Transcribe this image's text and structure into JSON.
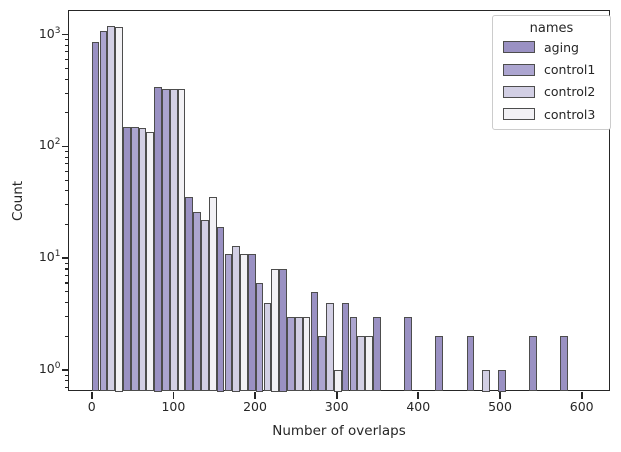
{
  "figure": {
    "background": "#ffffff",
    "text_color": "#262626",
    "spine_color": "#262626"
  },
  "chart_data": {
    "type": "bar",
    "subtype": "grouped-histogram-log-y",
    "title": "",
    "xlabel": "Number of overlaps",
    "ylabel": "Count",
    "x_tick_values": [
      0,
      100,
      200,
      300,
      400,
      500,
      600
    ],
    "y_tick_values": [
      1,
      10,
      100,
      1000
    ],
    "y_scale": "log",
    "grid": false,
    "xlim": [
      -28.4,
      635.3
    ],
    "ylim": [
      0.642,
      1643
    ],
    "bin_width": 38.27,
    "bin_starts": [
      0,
      38.3,
      76.5,
      114.8,
      153.1,
      191.3,
      229.6,
      267.9,
      306.1,
      344.4,
      382.7,
      420.9,
      459.2,
      497.4,
      535.7,
      574.0
    ],
    "bar_edge_color": "#4d4d4d",
    "series": [
      {
        "name": "aging",
        "color": "#9a91c3",
        "counts": [
          860,
          150,
          340,
          35,
          19,
          11,
          8,
          5,
          4,
          3,
          3,
          2,
          2,
          1,
          2,
          2
        ]
      },
      {
        "name": "control1",
        "color": "#aca5d0",
        "counts": [
          1080,
          150,
          325,
          26,
          11,
          6,
          3,
          2,
          3,
          0,
          0,
          0,
          0,
          0,
          0,
          0
        ]
      },
      {
        "name": "control2",
        "color": "#d2cfe4",
        "counts": [
          1190,
          145,
          325,
          22,
          13,
          4,
          3,
          4,
          2,
          0,
          0,
          0,
          1,
          0,
          0,
          0
        ]
      },
      {
        "name": "control3",
        "color": "#f2f1f5",
        "counts": [
          1170,
          135,
          325,
          35,
          11,
          8,
          3,
          1,
          2,
          0,
          0,
          0,
          0,
          0,
          0,
          0
        ]
      }
    ],
    "legend": {
      "title": "names",
      "position": "upper right"
    }
  }
}
